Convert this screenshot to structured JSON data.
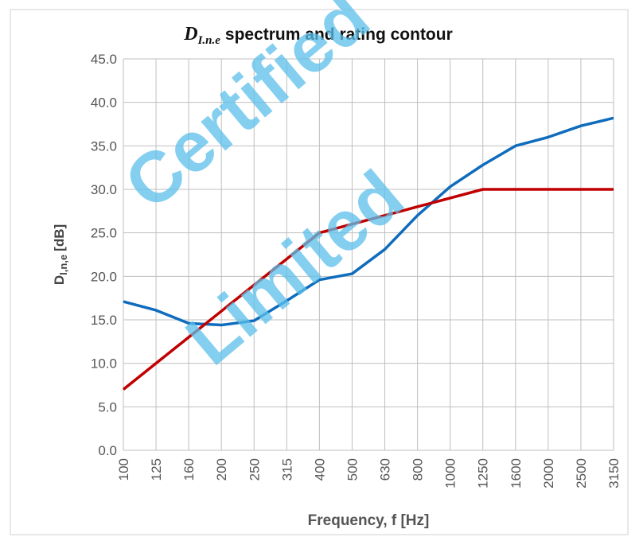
{
  "chart_data": {
    "type": "line",
    "title_main": "D",
    "title_subscript": "I.n.e",
    "title_rest": "spectrum and rating contour",
    "y_label_main": "D",
    "y_label_subscript": "I,n,e",
    "y_label_rest": "[dB]",
    "x_label": "Frequency, f [Hz]",
    "watermark": [
      "Certified",
      "Limited"
    ],
    "categories": [
      "100",
      "125",
      "160",
      "200",
      "250",
      "315",
      "400",
      "500",
      "630",
      "800",
      "1000",
      "1250",
      "1600",
      "2000",
      "2500",
      "3150"
    ],
    "series": [
      {
        "color": "#0f6cbd",
        "values": [
          17.1,
          16.1,
          14.6,
          14.4,
          14.9,
          17.2,
          19.6,
          20.3,
          23.1,
          27.0,
          30.3,
          32.8,
          35.0,
          36.0,
          37.3,
          38.2
        ]
      },
      {
        "color": "#c00000",
        "values": [
          7,
          10,
          13,
          16,
          19,
          22,
          25,
          26,
          27,
          28,
          29,
          30,
          30,
          30,
          30,
          30
        ]
      }
    ],
    "ylim": [
      0,
      45
    ],
    "yticks": [
      {
        "value": 0,
        "label": "0.0"
      },
      {
        "value": 5,
        "label": "5.0"
      },
      {
        "value": 10,
        "label": "10.0"
      },
      {
        "value": 15,
        "label": "15.0"
      },
      {
        "value": 20,
        "label": "20.0"
      },
      {
        "value": 25,
        "label": "25.0"
      },
      {
        "value": 30,
        "label": "30.0"
      },
      {
        "value": 35,
        "label": "35.0"
      },
      {
        "value": 40,
        "label": "40.0"
      },
      {
        "value": 45,
        "label": "45.0"
      }
    ],
    "grid": true
  }
}
